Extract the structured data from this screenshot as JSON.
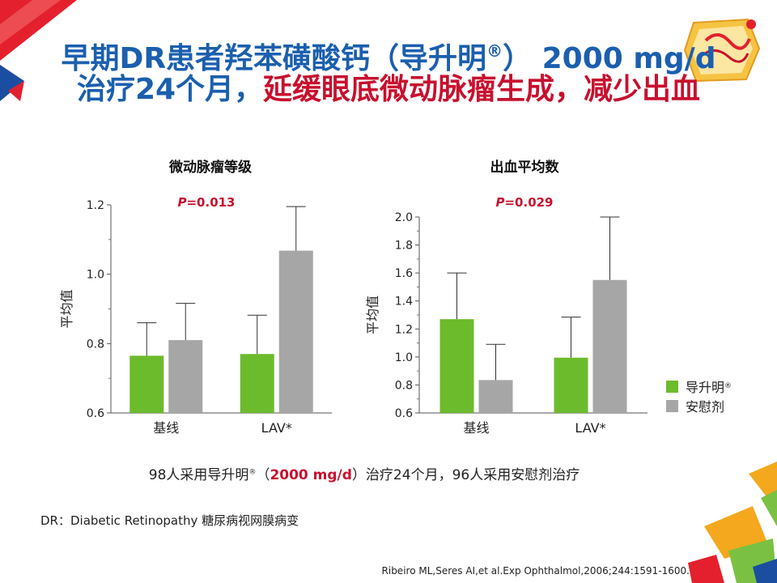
{
  "title": {
    "line1": "早期DR患者羟苯磺酸钙（导升明",
    "line1_reg": "®",
    "line1_end": "） 2000 mg/d",
    "line2_blue": "治疗24个月，",
    "line2_red": "延缓眼底微动脉瘤生成，减少出血"
  },
  "colors": {
    "title_blue": "#1b5fae",
    "accent_red": "#c8102e",
    "drug_green": "#6cbb2c",
    "placebo_gray": "#a6a6a6"
  },
  "chart_data": [
    {
      "type": "bar",
      "title": "微动脉瘤等级",
      "ylabel": "平均值",
      "xlabel": "",
      "p_prefix": "P",
      "p_value": "=0.013",
      "ylim": [
        0.6,
        1.2
      ],
      "yticks": [
        "0.6",
        "0.8",
        "1.0",
        "1.2"
      ],
      "categories": [
        "基线",
        "LAV*"
      ],
      "series": [
        {
          "name": "导升明",
          "values": [
            0.765,
            0.77
          ],
          "error_upper": [
            0.86,
            0.882
          ]
        },
        {
          "name": "安慰剂",
          "values": [
            0.81,
            1.068
          ],
          "error_upper": [
            0.916,
            1.195
          ]
        }
      ]
    },
    {
      "type": "bar",
      "title": "出血平均数",
      "ylabel": "平均值",
      "xlabel": "",
      "p_prefix": "P",
      "p_value": "=0.029",
      "ylim": [
        0.6,
        2.0
      ],
      "yticks": [
        "0.6",
        "0.8",
        "1.0",
        "1.2",
        "1.4",
        "1.6",
        "1.8",
        "2.0"
      ],
      "categories": [
        "基线",
        "LAV*"
      ],
      "series": [
        {
          "name": "导升明",
          "values": [
            1.27,
            0.995
          ],
          "error_upper": [
            1.6,
            1.285
          ]
        },
        {
          "name": "安慰剂",
          "values": [
            0.835,
            1.55
          ],
          "error_upper": [
            1.09,
            2.0
          ]
        }
      ]
    }
  ],
  "legend": {
    "drug": "导升明",
    "drug_reg": "®",
    "placebo": "安慰剂"
  },
  "caption": {
    "part1": "98人采用导升明",
    "reg": "®",
    "part2": "（",
    "dose": "2000 mg/d",
    "part3": "）治疗24个月，96人采用安慰剂治疗"
  },
  "footnote": "DR：Diabetic Retinopathy 糖尿病视网膜病变",
  "reference": "Ribeiro ML,Seres AI,et al.Exp Ophthalmol,2006;244:1591-1600."
}
